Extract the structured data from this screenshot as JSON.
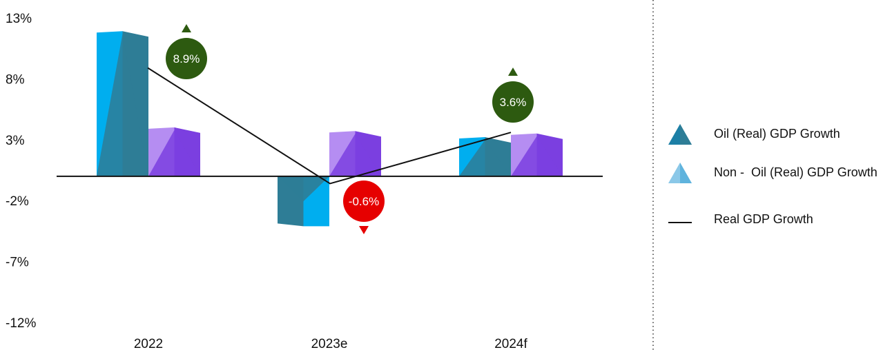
{
  "chart_data": {
    "type": "bar",
    "categories": [
      "2022",
      "2023e",
      "2024f"
    ],
    "y_ticks": [
      "13%",
      "8%",
      "3%",
      "-2%",
      "-7%",
      "-12%"
    ],
    "ylim": [
      -12,
      13
    ],
    "series": [
      {
        "name": "Oil (Real) GDP Growth",
        "values": [
          11.8,
          -4.1,
          3.1
        ],
        "color": "#00AEEF",
        "shade": "#2E7D96"
      },
      {
        "name": "Non -  Oil (Real) GDP Growth",
        "values": [
          3.9,
          3.6,
          3.4
        ],
        "color": "#B58DF2",
        "shade": "#7B3FE0"
      },
      {
        "name": "Real GDP Growth",
        "values": [
          8.9,
          -0.6,
          3.6
        ],
        "color": "#111111"
      }
    ],
    "bubbles": [
      {
        "label": "8.9%",
        "direction": "up",
        "color": "#2D5A10"
      },
      {
        "label": "-0.6%",
        "direction": "down",
        "color": "#E60000"
      },
      {
        "label": "3.6%",
        "direction": "up",
        "color": "#2D5A10"
      }
    ],
    "legend_position": "right",
    "grid": false
  }
}
